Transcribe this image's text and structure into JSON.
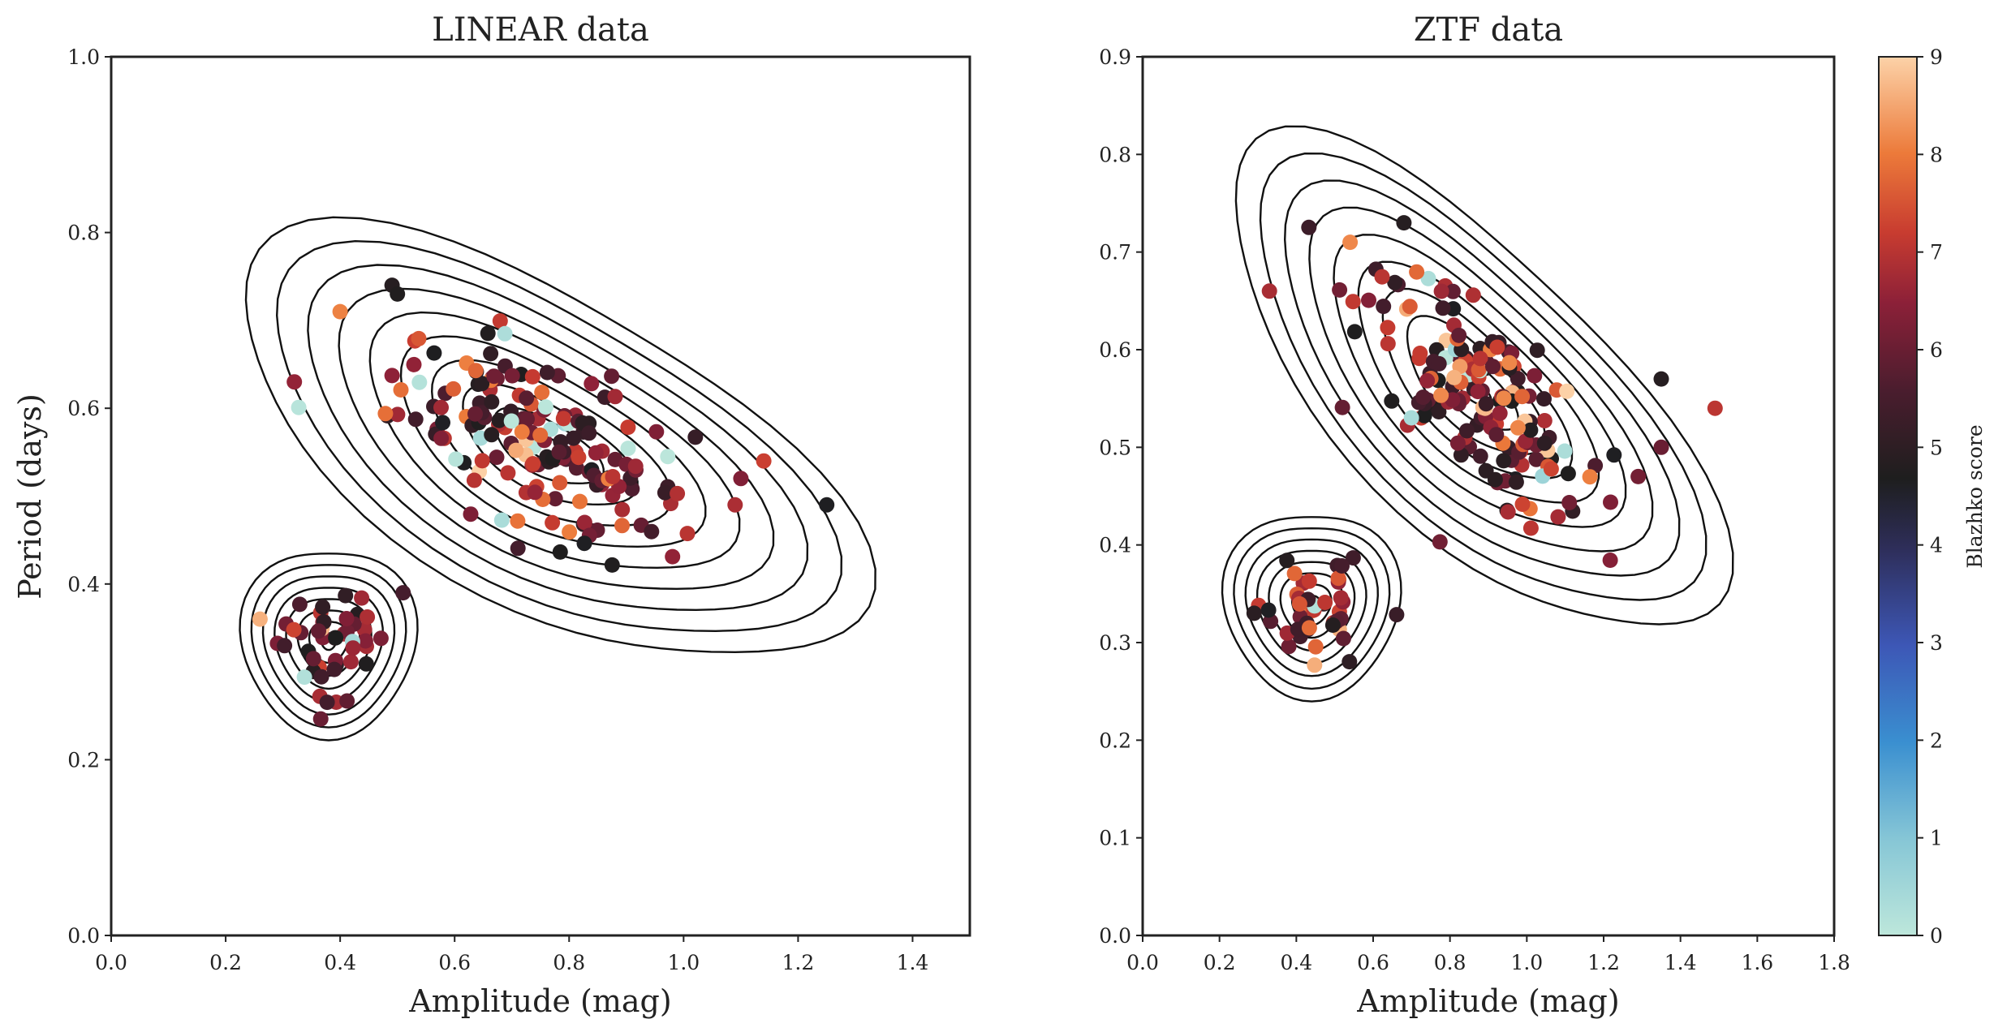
{
  "chart_data": [
    {
      "type": "scatter",
      "title": "LINEAR data",
      "xlabel": "Amplitude (mag)",
      "ylabel": "Period (days)",
      "xlim": [
        0.0,
        1.5
      ],
      "ylim": [
        0.0,
        1.0
      ],
      "xticks": [
        "0.0",
        "0.2",
        "0.4",
        "0.6",
        "0.8",
        "1.0",
        "1.2",
        "1.4"
      ],
      "yticks": [
        "0.0",
        "0.2",
        "0.4",
        "0.6",
        "0.8",
        "1.0"
      ],
      "overlay": "density contours",
      "clusters": [
        {
          "cx": 0.38,
          "cy": 0.335,
          "sx": 0.06,
          "sy": 0.045,
          "n": 45
        },
        {
          "cx": 0.76,
          "cy": 0.555,
          "sx": 0.17,
          "sy": 0.065,
          "tilt": -0.28,
          "n": 170
        }
      ],
      "outliers": [
        [
          1.25,
          0.49
        ],
        [
          1.14,
          0.54
        ],
        [
          1.1,
          0.52
        ],
        [
          1.09,
          0.49
        ],
        [
          0.5,
          0.73
        ],
        [
          0.4,
          0.71
        ],
        [
          0.32,
          0.63
        ],
        [
          0.26,
          0.36
        ],
        [
          0.51,
          0.39
        ]
      ]
    },
    {
      "type": "scatter",
      "title": "ZTF data",
      "xlabel": "Amplitude (mag)",
      "ylabel": "",
      "xlim": [
        0.0,
        1.8
      ],
      "ylim": [
        0.0,
        0.9
      ],
      "xticks": [
        "0.0",
        "0.2",
        "0.4",
        "0.6",
        "0.8",
        "1.0",
        "1.2",
        "1.4",
        "1.6",
        "1.8"
      ],
      "yticks": [
        "0.0",
        "0.1",
        "0.2",
        "0.3",
        "0.4",
        "0.5",
        "0.6",
        "0.7",
        "0.8",
        "0.9"
      ],
      "overlay": "density contours",
      "clusters": [
        {
          "cx": 0.44,
          "cy": 0.34,
          "sx": 0.09,
          "sy": 0.04,
          "n": 45
        },
        {
          "cx": 0.86,
          "cy": 0.56,
          "sx": 0.2,
          "sy": 0.06,
          "tilt": -0.28,
          "n": 170
        }
      ],
      "outliers": [
        [
          1.49,
          0.54
        ],
        [
          1.35,
          0.57
        ],
        [
          1.35,
          0.5
        ],
        [
          1.29,
          0.47
        ],
        [
          0.68,
          0.73
        ],
        [
          0.54,
          0.71
        ],
        [
          0.33,
          0.66
        ],
        [
          0.29,
          0.33
        ]
      ]
    }
  ],
  "colorbar": {
    "label": "Blazhko score",
    "ticks": [
      "0",
      "1",
      "2",
      "3",
      "4",
      "5",
      "6",
      "7",
      "8",
      "9"
    ],
    "range": [
      0,
      9
    ],
    "colormap": "icefire",
    "stops": [
      {
        "v": 0.0,
        "c": "#bde7db"
      },
      {
        "v": 0.11,
        "c": "#86c6d6"
      },
      {
        "v": 0.22,
        "c": "#3a8fd0"
      },
      {
        "v": 0.33,
        "c": "#3d57b6"
      },
      {
        "v": 0.44,
        "c": "#2e2e5a"
      },
      {
        "v": 0.52,
        "c": "#1e1e1e"
      },
      {
        "v": 0.62,
        "c": "#4a1d2e"
      },
      {
        "v": 0.72,
        "c": "#8c2038"
      },
      {
        "v": 0.8,
        "c": "#c83c30"
      },
      {
        "v": 0.89,
        "c": "#ec7a3a"
      },
      {
        "v": 1.0,
        "c": "#fcd2a8"
      }
    ]
  }
}
